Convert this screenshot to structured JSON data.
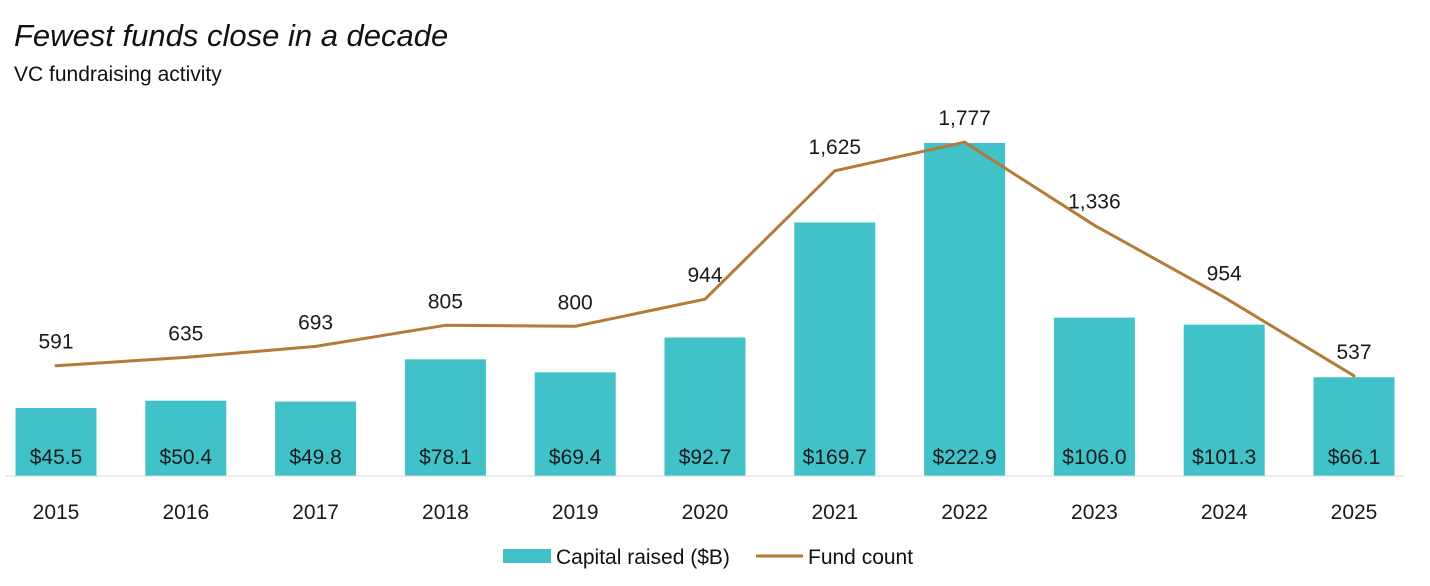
{
  "chart_data": {
    "type": "bar",
    "title": "Fewest funds close in a decade",
    "subtitle": "VC fundraising activity",
    "xlabel": "",
    "ylabel": "",
    "categories": [
      "2015",
      "2016",
      "2017",
      "2018",
      "2019",
      "2020",
      "2021",
      "2022",
      "2023",
      "2024",
      "2025"
    ],
    "series": [
      {
        "name": "Capital raised ($B)",
        "type": "bar",
        "color": "#40c2c8",
        "values": [
          45.5,
          50.4,
          49.8,
          78.1,
          69.4,
          92.7,
          169.7,
          222.9,
          106.0,
          101.3,
          66.1
        ],
        "labels": [
          "$45.5",
          "$50.4",
          "$49.8",
          "$78.1",
          "$69.4",
          "$92.7",
          "$169.7",
          "$222.9",
          "$106.0",
          "$101.3",
          "$66.1"
        ],
        "ylim": [
          0,
          225
        ]
      },
      {
        "name": "Fund count",
        "type": "line",
        "color": "#b47a37",
        "values": [
          591,
          635,
          693,
          805,
          800,
          944,
          1625,
          1777,
          1336,
          954,
          537
        ],
        "labels": [
          "591",
          "635",
          "693",
          "805",
          "800",
          "944",
          "1,625",
          "1,777",
          "1,336",
          "954",
          "537"
        ],
        "ylim": [
          0,
          2000
        ]
      }
    ],
    "legend": {
      "position": "bottom-center",
      "entries": [
        "Capital raised ($B)",
        "Fund count"
      ]
    },
    "grid": false
  }
}
